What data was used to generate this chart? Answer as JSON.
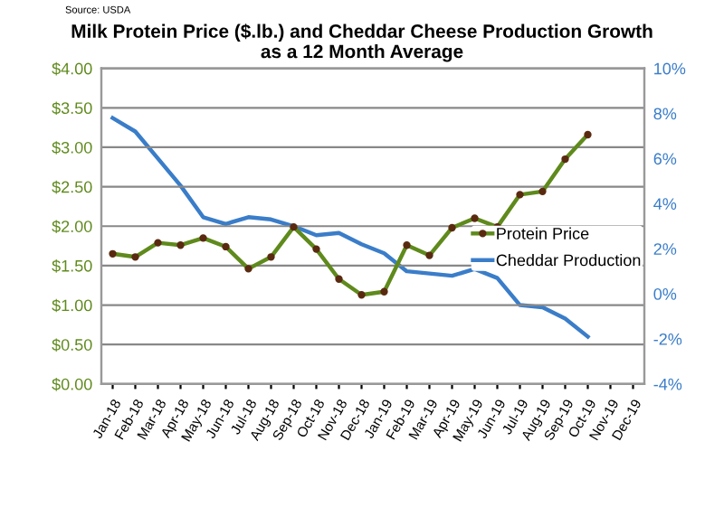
{
  "chart_data": {
    "type": "line",
    "title": "Milk Protein Price ($.lb.) and Cheddar Cheese Production Growth\nas a 12 Month Average",
    "annotations": [
      "Source: USDA"
    ],
    "categories": [
      "Jan-18",
      "Feb-18",
      "Mar-18",
      "Apr-18",
      "May-18",
      "Jun-18",
      "Jul-18",
      "Aug-18",
      "Sep-18",
      "Oct-18",
      "Nov-18",
      "Dec-18",
      "Jan-19",
      "Feb-19",
      "Mar-19",
      "Apr-19",
      "May-19",
      "Jun-19",
      "Jul-19",
      "Aug-19",
      "Sep-19",
      "Oct-19",
      "Nov-19",
      "Dec-19"
    ],
    "series": [
      {
        "name": "Protein Price",
        "color": "#5f8a1c",
        "marker": "circle",
        "values": [
          1.65,
          1.61,
          1.79,
          1.76,
          1.85,
          1.74,
          1.46,
          1.61,
          1.99,
          1.71,
          1.33,
          1.13,
          1.17,
          1.76,
          1.63,
          1.98,
          2.1,
          1.99,
          2.4,
          2.44,
          2.85,
          3.16,
          null,
          null
        ]
      },
      {
        "name": "Cheddar Production",
        "color": "#3a7dc9",
        "axis": "y2",
        "values": [
          7.8,
          7.2,
          6.0,
          4.8,
          3.4,
          3.1,
          3.4,
          3.3,
          3.0,
          2.6,
          2.7,
          2.2,
          1.8,
          1.0,
          0.9,
          0.8,
          1.1,
          0.7,
          -0.5,
          -0.6,
          -1.1,
          -1.9,
          null,
          null
        ]
      }
    ],
    "ylim": [
      0,
      4
    ],
    "yticks": [
      {
        "value": 0,
        "label": "$0.00"
      },
      {
        "value": 0.5,
        "label": "$0.50"
      },
      {
        "value": 1,
        "label": "$1.00"
      },
      {
        "value": 1.5,
        "label": "$1.50"
      },
      {
        "value": 2,
        "label": "$2.00"
      },
      {
        "value": 2.5,
        "label": "$2.50"
      },
      {
        "value": 3,
        "label": "$3.00"
      },
      {
        "value": 3.5,
        "label": "$3.50"
      },
      {
        "value": 4,
        "label": "$4.00"
      }
    ],
    "y2lim": [
      -4,
      10
    ],
    "y2ticks": [
      {
        "value": -4,
        "label": "-4%"
      },
      {
        "value": -2,
        "label": "-2%"
      },
      {
        "value": 0,
        "label": "0%"
      },
      {
        "value": 2,
        "label": "2%"
      },
      {
        "value": 4,
        "label": "4%"
      },
      {
        "value": 6,
        "label": "6%"
      },
      {
        "value": 8,
        "label": "8%"
      },
      {
        "value": 10,
        "label": "10%"
      }
    ],
    "grid": "y",
    "legend": "center right",
    "line_style": "solid"
  }
}
